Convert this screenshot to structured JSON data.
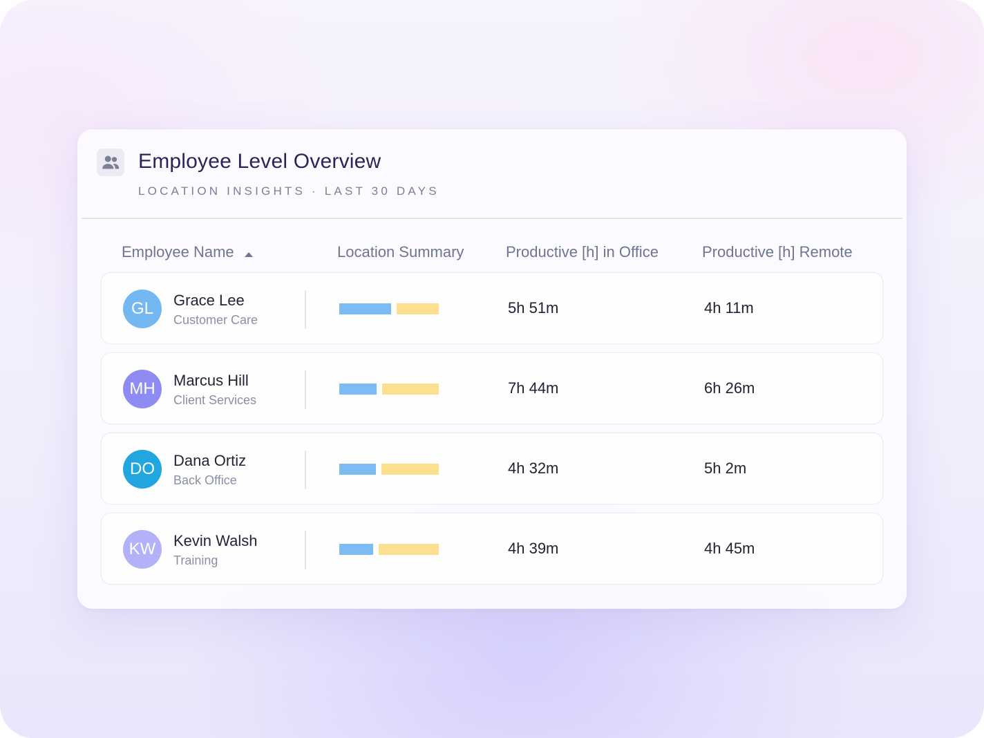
{
  "header": {
    "title": "Employee Level Overview",
    "subtitle": "LOCATION INSIGHTS · LAST 30 DAYS",
    "icon": "people-icon"
  },
  "columns": {
    "name": "Employee Name",
    "location": "Location Summary",
    "office": "Productive [h] in Office",
    "remote": "Productive [h] Remote"
  },
  "sort": {
    "column": "Employee Name",
    "direction": "ascending"
  },
  "colors": {
    "office_bar": "#7cbcf4",
    "remote_bar": "#fde08f",
    "title": "#2a2458"
  },
  "rows": [
    {
      "initials": "GL",
      "name": "Grace Lee",
      "dept": "Customer Care",
      "avatar_color": "#74b8f2",
      "office": "5h 51m",
      "remote": "4h 11m",
      "office_share": 0.55,
      "remote_share": 0.45
    },
    {
      "initials": "MH",
      "name": "Marcus Hill",
      "dept": "Client Services",
      "avatar_color": "#8e8cf2",
      "office": "7h 44m",
      "remote": "6h 26m",
      "office_share": 0.4,
      "remote_share": 0.6
    },
    {
      "initials": "DO",
      "name": "Dana Ortiz",
      "dept": "Back Office",
      "avatar_color": "#21a6e0",
      "office": "4h 32m",
      "remote": "5h 2m",
      "office_share": 0.39,
      "remote_share": 0.61
    },
    {
      "initials": "KW",
      "name": "Kevin Walsh",
      "dept": "Training",
      "avatar_color": "#b3b1f7",
      "office": "4h 39m",
      "remote": "4h 45m",
      "office_share": 0.36,
      "remote_share": 0.64
    }
  ]
}
